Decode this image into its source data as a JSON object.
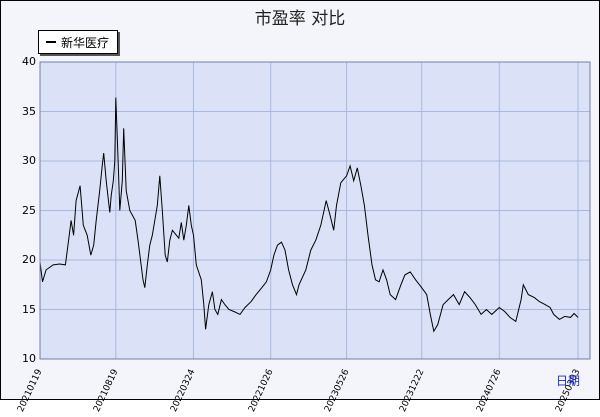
{
  "chart_data": {
    "type": "line",
    "title": "市盈率  对比",
    "xlabel": "日期",
    "ylabel": "",
    "ylim": [
      10,
      40
    ],
    "yticks": [
      10,
      15,
      20,
      25,
      30,
      35,
      40
    ],
    "xtick_labels": [
      "20210119",
      "20210819",
      "20220324",
      "20221026",
      "20230526",
      "20231222",
      "20240726",
      "20250303"
    ],
    "grid": true,
    "legend_position": "top-left",
    "colors": {
      "background": "#dbe2f7",
      "grid": "#a9b8de",
      "line": "#000000"
    },
    "series": [
      {
        "name": "新华医疗",
        "points": [
          [
            "20210119",
            19.8
          ],
          [
            "20210126",
            17.8
          ],
          [
            "20210205",
            19.0
          ],
          [
            "20210225",
            19.5
          ],
          [
            "20210315",
            19.6
          ],
          [
            "20210331",
            19.5
          ],
          [
            "20210409",
            22.0
          ],
          [
            "20210416",
            24.0
          ],
          [
            "20210423",
            22.5
          ],
          [
            "20210430",
            26.0
          ],
          [
            "20210511",
            27.5
          ],
          [
            "20210520",
            23.5
          ],
          [
            "20210531",
            22.5
          ],
          [
            "20210610",
            20.5
          ],
          [
            "20210618",
            21.5
          ],
          [
            "20210625",
            24.0
          ],
          [
            "20210705",
            27.0
          ],
          [
            "20210712",
            29.5
          ],
          [
            "20210716",
            30.8
          ],
          [
            "20210723",
            28.0
          ],
          [
            "20210802",
            24.8
          ],
          [
            "20210806",
            26.5
          ],
          [
            "20210812",
            28.0
          ],
          [
            "20210816",
            30.0
          ],
          [
            "20210819",
            36.4
          ],
          [
            "20210824",
            31.5
          ],
          [
            "20210830",
            25.0
          ],
          [
            "20210906",
            28.0
          ],
          [
            "20210910",
            33.3
          ],
          [
            "20210917",
            27.0
          ],
          [
            "20210927",
            25.0
          ],
          [
            "20211012",
            24.0
          ],
          [
            "20211020",
            22.0
          ],
          [
            "20211103",
            18.0
          ],
          [
            "20211108",
            17.2
          ],
          [
            "20211115",
            19.5
          ],
          [
            "20211122",
            21.5
          ],
          [
            "20211129",
            22.5
          ],
          [
            "20211206",
            24.0
          ],
          [
            "20211213",
            25.5
          ],
          [
            "20211220",
            28.5
          ],
          [
            "20211227",
            25.0
          ],
          [
            "20220104",
            20.5
          ],
          [
            "20220110",
            19.8
          ],
          [
            "20220117",
            22.0
          ],
          [
            "20220124",
            23.0
          ],
          [
            "20220211",
            22.2
          ],
          [
            "20220218",
            23.8
          ],
          [
            "20220225",
            22.0
          ],
          [
            "20220304",
            23.5
          ],
          [
            "20220311",
            25.5
          ],
          [
            "20220318",
            23.5
          ],
          [
            "20220324",
            22.5
          ],
          [
            "20220401",
            19.5
          ],
          [
            "20220415",
            18.0
          ],
          [
            "20220422",
            15.5
          ],
          [
            "20220427",
            13.0
          ],
          [
            "20220506",
            15.5
          ],
          [
            "20220516",
            16.8
          ],
          [
            "20220523",
            15.0
          ],
          [
            "20220531",
            14.5
          ],
          [
            "20220610",
            16.0
          ],
          [
            "20220620",
            15.5
          ],
          [
            "20220701",
            15.0
          ],
          [
            "20220715",
            14.8
          ],
          [
            "20220801",
            14.5
          ],
          [
            "20220815",
            15.2
          ],
          [
            "20220901",
            15.8
          ],
          [
            "20220915",
            16.5
          ],
          [
            "20221001",
            17.2
          ],
          [
            "20221014",
            17.8
          ],
          [
            "20221026",
            19.0
          ],
          [
            "20221104",
            20.5
          ],
          [
            "20221114",
            21.5
          ],
          [
            "20221125",
            21.8
          ],
          [
            "20221205",
            21.0
          ],
          [
            "20221215",
            19.0
          ],
          [
            "20221226",
            17.5
          ],
          [
            "20230106",
            16.5
          ],
          [
            "20230113",
            17.5
          ],
          [
            "20230201",
            19.0
          ],
          [
            "20230215",
            21.0
          ],
          [
            "20230301",
            22.0
          ],
          [
            "20230315",
            23.5
          ],
          [
            "20230330",
            26.0
          ],
          [
            "20230410",
            24.5
          ],
          [
            "20230420",
            23.0
          ],
          [
            "20230428",
            25.5
          ],
          [
            "20230510",
            27.8
          ],
          [
            "20230526",
            28.5
          ],
          [
            "20230605",
            29.5
          ],
          [
            "20230615",
            28.0
          ],
          [
            "20230625",
            29.3
          ],
          [
            "20230705",
            27.5
          ],
          [
            "20230715",
            25.5
          ],
          [
            "20230725",
            22.5
          ],
          [
            "20230805",
            19.5
          ],
          [
            "20230815",
            18.0
          ],
          [
            "20230825",
            17.8
          ],
          [
            "20230905",
            19.0
          ],
          [
            "20230915",
            18.0
          ],
          [
            "20230925",
            16.5
          ],
          [
            "20231010",
            16.0
          ],
          [
            "20231025",
            17.5
          ],
          [
            "20231105",
            18.5
          ],
          [
            "20231120",
            18.8
          ],
          [
            "20231205",
            18.0
          ],
          [
            "20231222",
            17.2
          ],
          [
            "20240105",
            16.5
          ],
          [
            "20240115",
            14.5
          ],
          [
            "20240125",
            12.8
          ],
          [
            "20240205",
            13.5
          ],
          [
            "20240220",
            15.5
          ],
          [
            "20240305",
            16.0
          ],
          [
            "20240320",
            16.5
          ],
          [
            "20240405",
            15.5
          ],
          [
            "20240420",
            16.8
          ],
          [
            "20240505",
            16.2
          ],
          [
            "20240520",
            15.5
          ],
          [
            "20240605",
            14.5
          ],
          [
            "20240620",
            15.0
          ],
          [
            "20240705",
            14.5
          ],
          [
            "20240726",
            15.2
          ],
          [
            "20240810",
            14.8
          ],
          [
            "20240825",
            14.2
          ],
          [
            "20240910",
            13.8
          ],
          [
            "20240925",
            16.0
          ],
          [
            "20241001",
            17.5
          ],
          [
            "20241015",
            16.5
          ],
          [
            "20241101",
            16.2
          ],
          [
            "20241115",
            15.8
          ],
          [
            "20241201",
            15.5
          ],
          [
            "20241215",
            15.2
          ],
          [
            "20241225",
            14.5
          ],
          [
            "20250110",
            14.0
          ],
          [
            "20250125",
            14.3
          ],
          [
            "20250210",
            14.2
          ],
          [
            "20250220",
            14.6
          ],
          [
            "20250303",
            14.2
          ]
        ]
      }
    ]
  }
}
